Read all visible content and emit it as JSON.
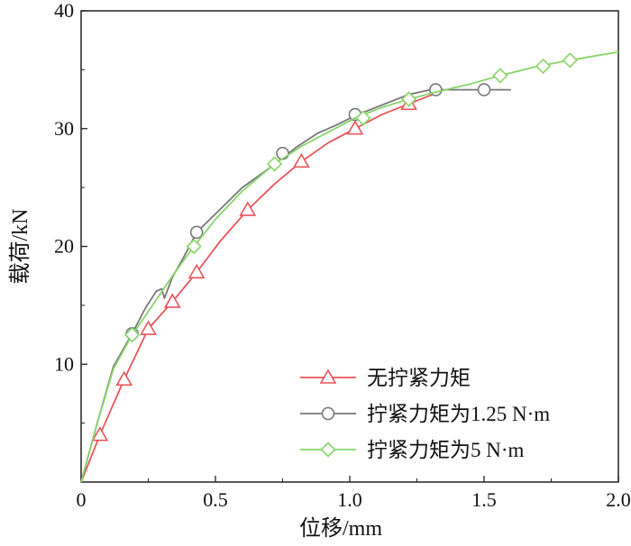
{
  "chart_data": {
    "type": "line",
    "xlabel": "位移/mm",
    "ylabel": "载荷/kN",
    "xlim": [
      0,
      2.0
    ],
    "ylim": [
      0,
      40
    ],
    "xticks": [
      "0",
      "0.5",
      "1.0",
      "1.5",
      "2.0"
    ],
    "yticks": [
      "10",
      "20",
      "30",
      "40"
    ],
    "grid": false,
    "legend_position": "bottom-right",
    "series": [
      {
        "name": "无拧紧力矩",
        "color": "#e8555a",
        "marker": "triangle",
        "x": [
          0.0,
          0.07,
          0.16,
          0.25,
          0.34,
          0.43,
          0.52,
          0.62,
          0.72,
          0.82,
          0.92,
          1.02,
          1.12,
          1.22,
          1.32
        ],
        "y": [
          0.0,
          4.0,
          8.7,
          13.0,
          15.3,
          17.8,
          20.5,
          23.1,
          25.3,
          27.2,
          28.8,
          30.0,
          31.2,
          32.1,
          33.0
        ],
        "markers_x": [
          0.07,
          0.16,
          0.25,
          0.34,
          0.43,
          0.62,
          0.82,
          1.02,
          1.22
        ],
        "markers_y": [
          4.0,
          8.7,
          13.0,
          15.3,
          17.8,
          23.1,
          27.2,
          30.0,
          32.1
        ]
      },
      {
        "name": "拧紧力矩为1.25 N·m",
        "color": "#777777",
        "marker": "circle",
        "x": [
          0.0,
          0.06,
          0.12,
          0.19,
          0.24,
          0.28,
          0.3,
          0.31,
          0.34,
          0.38,
          0.43,
          0.52,
          0.6,
          0.68,
          0.75,
          0.8,
          0.88,
          0.95,
          1.02,
          1.12,
          1.22,
          1.3,
          1.42,
          1.52,
          1.6
        ],
        "y": [
          0.0,
          5.0,
          9.8,
          12.6,
          14.8,
          16.2,
          16.4,
          15.6,
          17.4,
          19.0,
          21.2,
          23.2,
          25.0,
          26.3,
          27.5,
          28.4,
          29.6,
          30.3,
          31.1,
          32.0,
          32.9,
          33.3,
          33.3,
          33.3,
          33.3
        ],
        "markers_x": [
          0.19,
          0.43,
          0.75,
          1.02,
          1.32,
          1.5
        ],
        "markers_y": [
          12.6,
          21.2,
          27.9,
          31.2,
          33.3,
          33.3
        ]
      },
      {
        "name": "拧紧力矩为5 N·m",
        "color": "#88d46a",
        "marker": "diamond",
        "x": [
          0.0,
          0.06,
          0.12,
          0.19,
          0.26,
          0.34,
          0.42,
          0.5,
          0.6,
          0.72,
          0.82,
          0.92,
          1.02,
          1.12,
          1.22,
          1.32,
          1.45,
          1.56,
          1.7,
          1.82,
          1.92,
          2.0
        ],
        "y": [
          0.0,
          5.0,
          9.6,
          12.5,
          14.8,
          17.5,
          20.0,
          22.3,
          24.7,
          27.0,
          28.5,
          29.7,
          30.9,
          31.8,
          32.5,
          33.1,
          33.8,
          34.5,
          35.3,
          35.8,
          36.2,
          36.5
        ],
        "markers_x": [
          0.19,
          0.42,
          0.72,
          1.05,
          1.22,
          1.56,
          1.72,
          1.82
        ],
        "markers_y": [
          12.5,
          20.0,
          27.0,
          30.9,
          32.5,
          34.5,
          35.3,
          35.8
        ]
      }
    ]
  }
}
